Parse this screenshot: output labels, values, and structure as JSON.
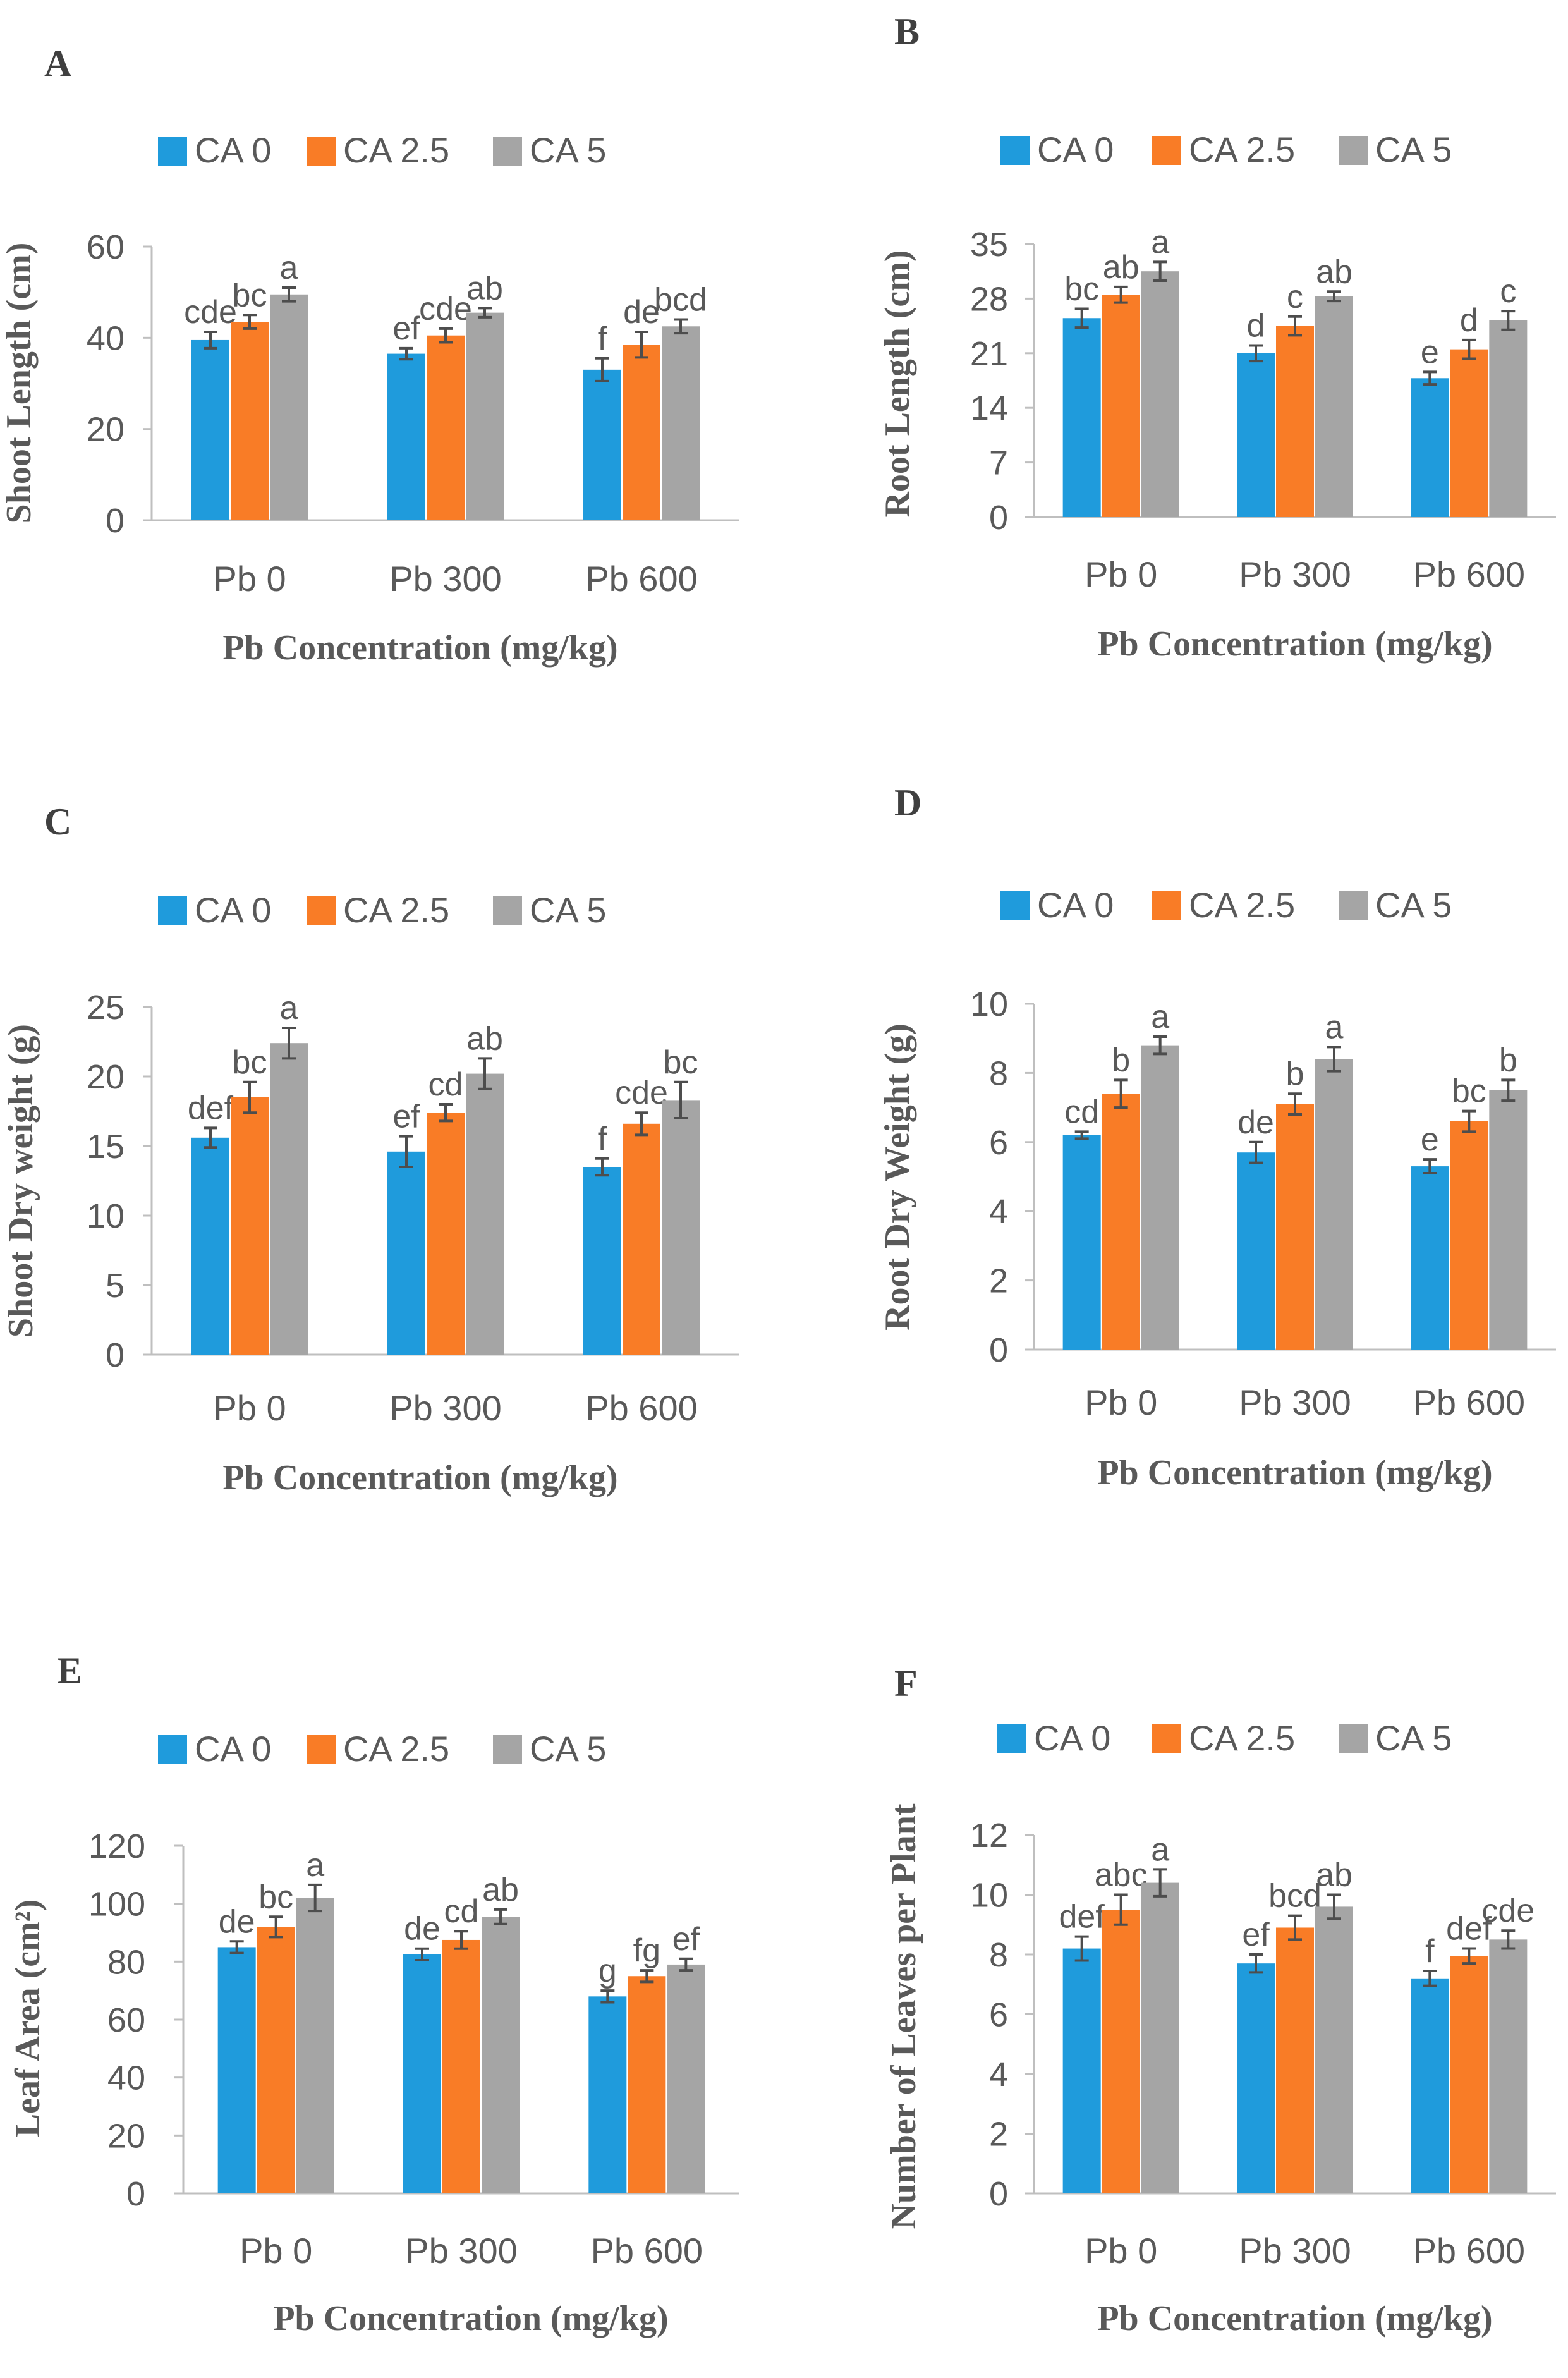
{
  "legend_labels": [
    "CA 0",
    "CA 2.5",
    "CA 5"
  ],
  "series_colors": [
    "#1f9bdc",
    "#f97c26",
    "#a5a5a5"
  ],
  "chart_data": [
    {
      "panel": "A",
      "type": "bar",
      "categories": [
        "Pb 0",
        "Pb 300",
        "Pb 600"
      ],
      "xlabel": "Pb Concentration (mg/kg)",
      "ylabel": "Shoot Length (cm)",
      "ylim": [
        0,
        60
      ],
      "yticks": [
        0,
        20,
        40,
        60
      ],
      "series": [
        {
          "name": "CA 0",
          "values": [
            39.5,
            36.5,
            33
          ],
          "errors": [
            1.8,
            1.2,
            2.5
          ],
          "letters": [
            "cde",
            "ef",
            "f"
          ]
        },
        {
          "name": "CA 2.5",
          "values": [
            43.5,
            40.5,
            38.5
          ],
          "errors": [
            1.5,
            1.5,
            2.8
          ],
          "letters": [
            "bc",
            "cde",
            "de"
          ]
        },
        {
          "name": "CA 5",
          "values": [
            49.5,
            45.5,
            42.5
          ],
          "errors": [
            1.5,
            1.0,
            1.5
          ],
          "letters": [
            "a",
            "ab",
            "bcd"
          ]
        }
      ]
    },
    {
      "panel": "B",
      "type": "bar",
      "categories": [
        "Pb 0",
        "Pb 300",
        "Pb 600"
      ],
      "xlabel": "Pb Concentration (mg/kg)",
      "ylabel": "Root Length (cm)",
      "ylim": [
        0,
        35
      ],
      "yticks": [
        0,
        7,
        14,
        21,
        28,
        35
      ],
      "series": [
        {
          "name": "CA 0",
          "values": [
            25.5,
            21,
            17.8
          ],
          "errors": [
            1.2,
            1.0,
            0.8
          ],
          "letters": [
            "bc",
            "d",
            "e"
          ]
        },
        {
          "name": "CA 2.5",
          "values": [
            28.5,
            24.5,
            21.5
          ],
          "errors": [
            1.0,
            1.2,
            1.2
          ],
          "letters": [
            "ab",
            "c",
            "d"
          ]
        },
        {
          "name": "CA 5",
          "values": [
            31.5,
            28.3,
            25.2
          ],
          "errors": [
            1.2,
            0.6,
            1.2
          ],
          "letters": [
            "a",
            "ab",
            "c"
          ]
        }
      ]
    },
    {
      "panel": "C",
      "type": "bar",
      "categories": [
        "Pb 0",
        "Pb 300",
        "Pb 600"
      ],
      "xlabel": "Pb Concentration (mg/kg)",
      "ylabel": "Shoot Dry weight (g)",
      "ylim": [
        0,
        25
      ],
      "yticks": [
        0,
        5,
        10,
        15,
        20,
        25
      ],
      "series": [
        {
          "name": "CA 0",
          "values": [
            15.6,
            14.6,
            13.5
          ],
          "errors": [
            0.7,
            1.1,
            0.6
          ],
          "letters": [
            "def",
            "ef",
            "f"
          ]
        },
        {
          "name": "CA 2.5",
          "values": [
            18.5,
            17.4,
            16.6
          ],
          "errors": [
            1.1,
            0.6,
            0.8
          ],
          "letters": [
            "bc",
            "cd",
            "cde"
          ]
        },
        {
          "name": "CA 5",
          "values": [
            22.4,
            20.2,
            18.3
          ],
          "errors": [
            1.1,
            1.1,
            1.3
          ],
          "letters": [
            "a",
            "ab",
            "bc"
          ]
        }
      ]
    },
    {
      "panel": "D",
      "type": "bar",
      "categories": [
        "Pb 0",
        "Pb 300",
        "Pb 600"
      ],
      "xlabel": "Pb Concentration (mg/kg)",
      "ylabel": "Root Dry Weight (g)",
      "ylim": [
        0,
        10
      ],
      "yticks": [
        0,
        2,
        4,
        6,
        8,
        10
      ],
      "series": [
        {
          "name": "CA 0",
          "values": [
            6.2,
            5.7,
            5.3
          ],
          "errors": [
            0.1,
            0.3,
            0.2
          ],
          "letters": [
            "cd",
            "de",
            "e"
          ]
        },
        {
          "name": "CA 2.5",
          "values": [
            7.4,
            7.1,
            6.6
          ],
          "errors": [
            0.4,
            0.3,
            0.3
          ],
          "letters": [
            "b",
            "b",
            "bc"
          ]
        },
        {
          "name": "CA 5",
          "values": [
            8.8,
            8.4,
            7.5
          ],
          "errors": [
            0.25,
            0.35,
            0.3
          ],
          "letters": [
            "a",
            "a",
            "b"
          ]
        }
      ]
    },
    {
      "panel": "E",
      "type": "bar",
      "categories": [
        "Pb 0",
        "Pb 300",
        "Pb 600"
      ],
      "xlabel": "Pb Concentration (mg/kg)",
      "ylabel": "Leaf Area (cm²)",
      "ylim": [
        0,
        120
      ],
      "yticks": [
        0,
        20,
        40,
        60,
        80,
        100,
        120
      ],
      "series": [
        {
          "name": "CA 0",
          "values": [
            85,
            82.5,
            68
          ],
          "errors": [
            2,
            2,
            2
          ],
          "letters": [
            "de",
            "de",
            "g"
          ]
        },
        {
          "name": "CA 2.5",
          "values": [
            92,
            87.5,
            75
          ],
          "errors": [
            3.5,
            3,
            2
          ],
          "letters": [
            "bc",
            "cd",
            "fg"
          ]
        },
        {
          "name": "CA 5",
          "values": [
            102,
            95.5,
            79
          ],
          "errors": [
            4.5,
            2.5,
            2
          ],
          "letters": [
            "a",
            "ab",
            "ef"
          ]
        }
      ]
    },
    {
      "panel": "F",
      "type": "bar",
      "categories": [
        "Pb 0",
        "Pb 300",
        "Pb 600"
      ],
      "xlabel": "Pb Concentration (mg/kg)",
      "ylabel": "Number of Leaves per Plant",
      "ylim": [
        0,
        12
      ],
      "yticks": [
        0,
        2,
        4,
        6,
        8,
        10,
        12
      ],
      "series": [
        {
          "name": "CA 0",
          "values": [
            8.2,
            7.7,
            7.2
          ],
          "errors": [
            0.4,
            0.3,
            0.25
          ],
          "letters": [
            "def",
            "ef",
            "f"
          ]
        },
        {
          "name": "CA 2.5",
          "values": [
            9.5,
            8.9,
            7.95
          ],
          "errors": [
            0.5,
            0.4,
            0.25
          ],
          "letters": [
            "abc",
            "bcd",
            "def"
          ]
        },
        {
          "name": "CA 5",
          "values": [
            10.4,
            9.6,
            8.5
          ],
          "errors": [
            0.45,
            0.4,
            0.3
          ],
          "letters": [
            "a",
            "ab",
            "cde"
          ]
        }
      ]
    }
  ]
}
